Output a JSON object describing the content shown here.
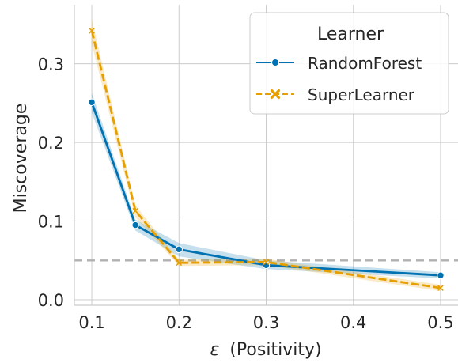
{
  "chart_data": {
    "type": "line",
    "xlabel_symbol": "ε",
    "xlabel": "(Positivity)",
    "ylabel": "Miscoverage",
    "xlim": [
      0.08,
      0.52
    ],
    "ylim": [
      -0.007,
      0.375
    ],
    "xticks": [
      0.1,
      0.2,
      0.3,
      0.4,
      0.5
    ],
    "xtick_labels": [
      "0.1",
      "0.2",
      "0.3",
      "0.4",
      "0.5"
    ],
    "yticks": [
      0.0,
      0.1,
      0.2,
      0.3
    ],
    "ytick_labels": [
      "0.0",
      "0.1",
      "0.2",
      "0.3"
    ],
    "grid": true,
    "reference_line": {
      "y": 0.05,
      "style": "dashed",
      "color": "#b0b0b0"
    },
    "legend": {
      "title": "Learner",
      "placement": "top-right"
    },
    "x": [
      0.1,
      0.15,
      0.2,
      0.3,
      0.5
    ],
    "series": [
      {
        "name": "RandomForest",
        "color": "#0072b2",
        "marker": "circle",
        "line_style": "solid",
        "values": [
          0.251,
          0.095,
          0.064,
          0.044,
          0.031
        ],
        "ci_lower": [
          0.238,
          0.088,
          0.055,
          0.039,
          0.027
        ],
        "ci_upper": [
          0.263,
          0.102,
          0.072,
          0.05,
          0.035
        ]
      },
      {
        "name": "SuperLearner",
        "color": "#e69f00",
        "marker": "x",
        "line_style": "dashed",
        "values": [
          0.342,
          0.113,
          0.047,
          0.048,
          0.015
        ],
        "ci_lower": [
          0.325,
          0.105,
          0.043,
          0.044,
          0.011
        ],
        "ci_upper": [
          0.357,
          0.12,
          0.051,
          0.052,
          0.019
        ]
      }
    ]
  }
}
